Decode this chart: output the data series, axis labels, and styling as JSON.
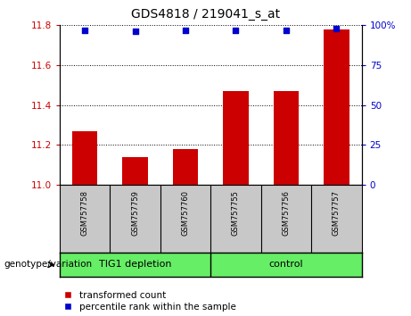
{
  "title": "GDS4818 / 219041_s_at",
  "samples": [
    "GSM757758",
    "GSM757759",
    "GSM757760",
    "GSM757755",
    "GSM757756",
    "GSM757757"
  ],
  "bar_values": [
    11.27,
    11.14,
    11.18,
    11.47,
    11.47,
    11.78
  ],
  "percentile_values": [
    97,
    96,
    97,
    97,
    97,
    98
  ],
  "bar_bottom": 11.0,
  "ylim_left": [
    11.0,
    11.8
  ],
  "ylim_right": [
    0,
    100
  ],
  "yticks_left": [
    11.0,
    11.2,
    11.4,
    11.6,
    11.8
  ],
  "yticks_right": [
    0,
    25,
    50,
    75,
    100
  ],
  "ytick_right_labels": [
    "0",
    "25",
    "50",
    "75",
    "100%"
  ],
  "group_boundary": 2.5,
  "bar_color": "#cc0000",
  "dot_color": "#0000cc",
  "bar_width": 0.5,
  "grid_color": "black",
  "legend_bar_label": "transformed count",
  "legend_dot_label": "percentile rank within the sample",
  "genotype_label": "genotype/variation",
  "left_tick_color": "#cc0000",
  "right_tick_color": "#0000cc",
  "subplot_bg": "#c8c8c8",
  "group_row_color": "#66ee66",
  "group1_label": "TIG1 depletion",
  "group2_label": "control",
  "fig_width": 4.61,
  "fig_height": 3.54
}
